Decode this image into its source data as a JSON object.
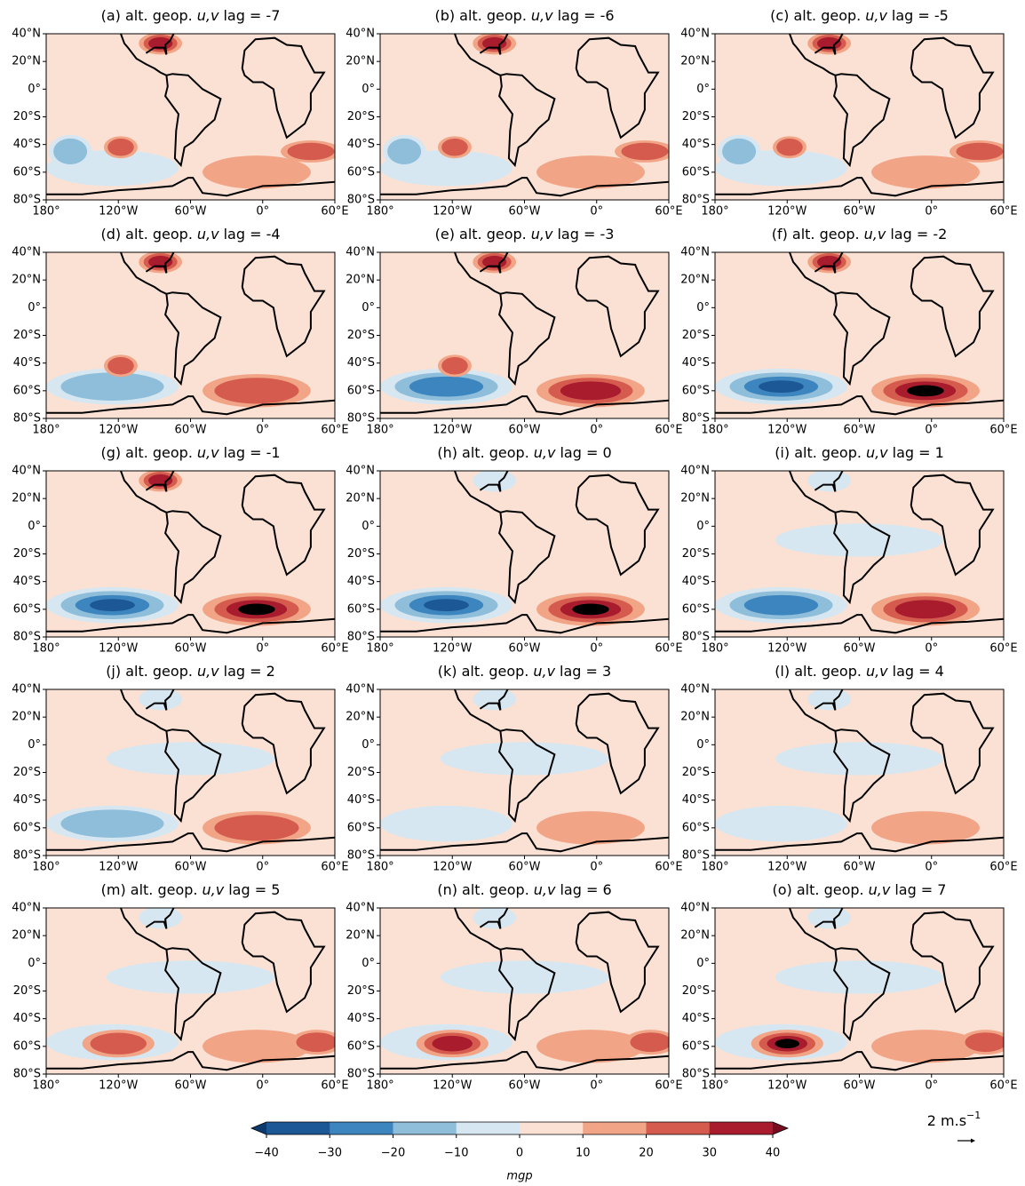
{
  "chart_data": {
    "type": "map",
    "panels": [
      {
        "prefix": "(a) alt. geop.",
        "vars": "u,v",
        "lag": "lag = -7"
      },
      {
        "prefix": "(b) alt. geop.",
        "vars": "u,v",
        "lag": "lag = -6"
      },
      {
        "prefix": "(c) alt. geop.",
        "vars": "u,v",
        "lag": "lag = -5"
      },
      {
        "prefix": "(d) alt. geop.",
        "vars": "u,v",
        "lag": "lag = -4"
      },
      {
        "prefix": "(e) alt. geop.",
        "vars": "u,v",
        "lag": "lag = -3"
      },
      {
        "prefix": "(f) alt. geop.",
        "vars": "u,v",
        "lag": "lag = -2"
      },
      {
        "prefix": "(g) alt. geop.",
        "vars": "u,v",
        "lag": "lag = -1"
      },
      {
        "prefix": "(h) alt. geop.",
        "vars": "u,v",
        "lag": "lag = 0"
      },
      {
        "prefix": "(i) alt. geop.",
        "vars": "u,v",
        "lag": "lag = 1"
      },
      {
        "prefix": "(j) alt. geop.",
        "vars": "u,v",
        "lag": "lag = 2"
      },
      {
        "prefix": "(k) alt. geop.",
        "vars": "u,v",
        "lag": "lag = 3"
      },
      {
        "prefix": "(l) alt. geop.",
        "vars": "u,v",
        "lag": "lag = 4"
      },
      {
        "prefix": "(m) alt. geop.",
        "vars": "u,v",
        "lag": "lag = 5"
      },
      {
        "prefix": "(n) alt. geop.",
        "vars": "u,v",
        "lag": "lag = 6"
      },
      {
        "prefix": "(o) alt. geop.",
        "vars": "u,v",
        "lag": "lag = 7"
      }
    ],
    "xlim": [
      -180,
      60
    ],
    "ylim": [
      -80,
      40
    ],
    "xticks": [
      {
        "value": -180,
        "label": "180°"
      },
      {
        "value": -120,
        "label": "120°W"
      },
      {
        "value": -60,
        "label": "60°W"
      },
      {
        "value": 0,
        "label": "0°"
      },
      {
        "value": 60,
        "label": "60°E"
      }
    ],
    "yticks": [
      {
        "value": 40,
        "label": "40°N"
      },
      {
        "value": 20,
        "label": "20°N"
      },
      {
        "value": 0,
        "label": "0°"
      },
      {
        "value": -20,
        "label": "20°S"
      },
      {
        "value": -40,
        "label": "40°S"
      },
      {
        "value": -60,
        "label": "60°S"
      },
      {
        "value": -80,
        "label": "80°S"
      }
    ],
    "colorbar": {
      "ticks": [
        {
          "value": -40,
          "label": "−40"
        },
        {
          "value": -30,
          "label": "−30"
        },
        {
          "value": -20,
          "label": "−20"
        },
        {
          "value": -10,
          "label": "−10"
        },
        0,
        10,
        20,
        30,
        40
      ],
      "colors": [
        "#1c5796",
        "#3c85bf",
        "#8fbedb",
        "#d7e7f1",
        "#fbe1d3",
        "#f2a486",
        "#d45b4e",
        "#a81c2e"
      ],
      "under": "#0d3a6e",
      "over": "#7a0c22",
      "label": "mgp"
    },
    "vector_key": {
      "label": "2 m.s",
      "exponent": "−1"
    }
  }
}
